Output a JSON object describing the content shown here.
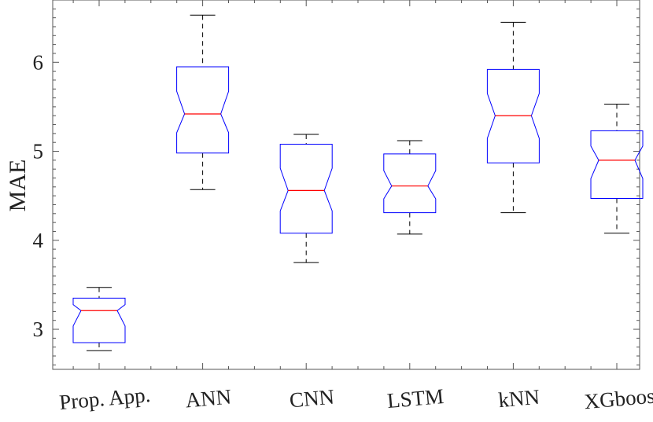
{
  "chart_data": {
    "type": "boxplot",
    "notched": true,
    "title": "",
    "xlabel": "",
    "ylabel": "MAE",
    "ylim": [
      2.55,
      6.7
    ],
    "yticks": [
      "3",
      "4",
      "5",
      "6"
    ],
    "colors": {
      "box": "#0000ff",
      "median": "#ff0000",
      "whisker": "#000000",
      "axis": "#555555"
    },
    "categories": [
      "Prop. App.",
      "ANN",
      "CNN",
      "LSTM",
      "kNN",
      "XGboost"
    ],
    "boxes": [
      {
        "name": "Prop. App.",
        "min": 2.76,
        "q1": 2.85,
        "median": 3.21,
        "q3": 3.35,
        "max": 3.47
      },
      {
        "name": "ANN",
        "min": 4.57,
        "q1": 4.98,
        "median": 5.42,
        "q3": 5.95,
        "max": 6.53
      },
      {
        "name": "CNN",
        "min": 3.75,
        "q1": 4.08,
        "median": 4.56,
        "q3": 5.08,
        "max": 5.19
      },
      {
        "name": "LSTM",
        "min": 4.07,
        "q1": 4.31,
        "median": 4.61,
        "q3": 4.97,
        "max": 5.12
      },
      {
        "name": "kNN",
        "min": 4.31,
        "q1": 4.87,
        "median": 5.4,
        "q3": 5.92,
        "max": 6.45
      },
      {
        "name": "XGboost",
        "min": 4.08,
        "q1": 4.47,
        "median": 4.9,
        "q3": 5.23,
        "max": 5.53
      }
    ]
  }
}
